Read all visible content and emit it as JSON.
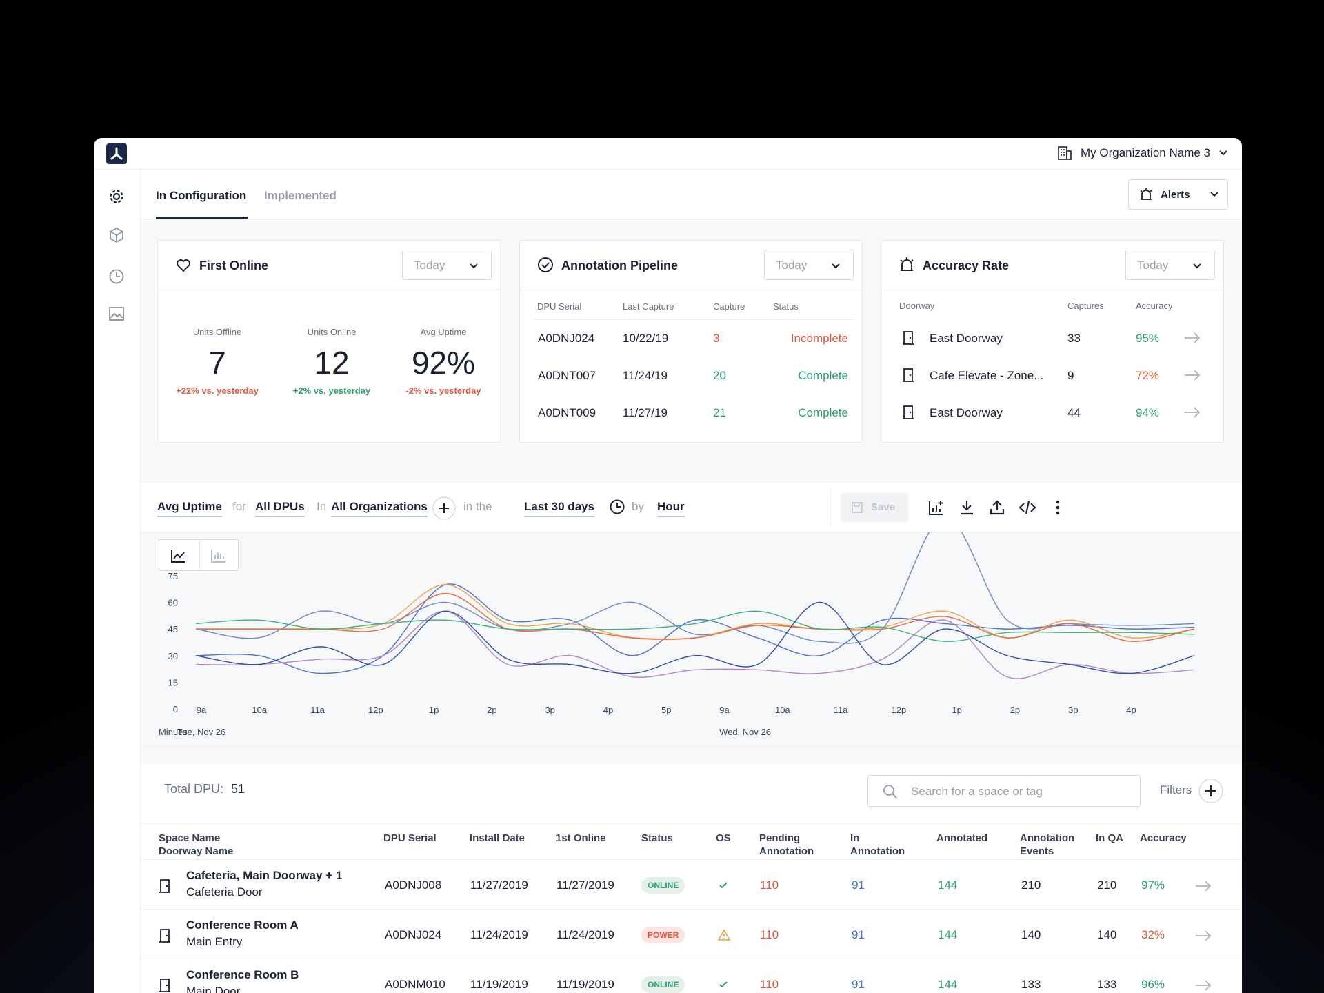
{
  "header": {
    "org_name": "My Organization Name 3"
  },
  "tabs": {
    "active": "In Configuration",
    "inactive": "Implemented",
    "alerts_label": "Alerts"
  },
  "first_online": {
    "title": "First Online",
    "range": "Today",
    "stats": [
      {
        "label": "Units Offline",
        "value": "7",
        "delta": "+22% vs. yesterday"
      },
      {
        "label": "Units Online",
        "value": "12",
        "delta": "+2% vs. yesterday"
      },
      {
        "label": "Avg Uptime",
        "value": "92%",
        "delta": "-2% vs. yesterday"
      }
    ]
  },
  "pipeline": {
    "title": "Annotation Pipeline",
    "range": "Today",
    "headers": [
      "DPU Serial",
      "Last Capture",
      "Capture",
      "Status"
    ],
    "rows": [
      [
        "A0DNJ024",
        "10/22/19",
        "3",
        "Incomplete"
      ],
      [
        "A0DNT007",
        "11/24/19",
        "20",
        "Complete"
      ],
      [
        "A0DNT009",
        "11/27/19",
        "21",
        "Complete"
      ]
    ]
  },
  "accuracy": {
    "title": "Accuracy Rate",
    "range": "Today",
    "headers": [
      "Doorway",
      "Captures",
      "Accuracy"
    ],
    "rows": [
      [
        "East Doorway",
        "33",
        "95%"
      ],
      [
        "Cafe Elevate - Zone...",
        "9",
        "72%"
      ],
      [
        "East Doorway",
        "44",
        "94%"
      ]
    ]
  },
  "query": {
    "metric": "Avg Uptime",
    "for": "for",
    "dpus": "All DPUs",
    "in": "In",
    "orgs": "All Organizations",
    "in_the": "in the",
    "range": "Last 30 days",
    "by": "by",
    "unit": "Hour",
    "save": "Save"
  },
  "chart_data": {
    "type": "line",
    "y_ticks": [
      "75",
      "60",
      "45",
      "30",
      "15",
      "0"
    ],
    "x_ticks": [
      "9a",
      "10a",
      "11a",
      "12p",
      "1p",
      "2p",
      "3p",
      "4p",
      "5p",
      "9a",
      "10a",
      "11a",
      "12p",
      "1p",
      "2p",
      "3p",
      "4p"
    ],
    "ylabel": "Minues",
    "date_labels": [
      "Tue, Nov 26",
      "Wed, Nov 26"
    ],
    "ylim": [
      0,
      80
    ],
    "series": [
      {
        "color": "#4a6fd1",
        "values": [
          30,
          30,
          20,
          30,
          70,
          50,
          50,
          30,
          50,
          40,
          30,
          50,
          48,
          45,
          47,
          45,
          46
        ]
      },
      {
        "color": "#6f86c9",
        "values": [
          45,
          40,
          55,
          48,
          60,
          45,
          48,
          60,
          42,
          47,
          38,
          45,
          108,
          50,
          48,
          47,
          48
        ]
      },
      {
        "color": "#f0a24a",
        "values": [
          45,
          45,
          45,
          48,
          70,
          48,
          48,
          40,
          40,
          48,
          45,
          46,
          55,
          40,
          50,
          40,
          45
        ]
      },
      {
        "color": "#e46d3d",
        "values": [
          45,
          45,
          45,
          45,
          65,
          45,
          45,
          40,
          40,
          47,
          45,
          45,
          52,
          40,
          48,
          38,
          45
        ]
      },
      {
        "color": "#3db07c",
        "values": [
          48,
          50,
          45,
          48,
          50,
          45,
          45,
          45,
          48,
          55,
          45,
          46,
          38,
          43,
          43,
          43,
          42
        ]
      },
      {
        "color": "#b583c7",
        "values": [
          25,
          25,
          28,
          30,
          55,
          25,
          30,
          18,
          22,
          22,
          20,
          28,
          50,
          18,
          25,
          20,
          22
        ]
      },
      {
        "color": "#2f4fb3",
        "values": [
          30,
          25,
          35,
          25,
          55,
          28,
          25,
          20,
          30,
          25,
          60,
          25,
          45,
          30,
          25,
          20,
          30
        ]
      }
    ]
  },
  "table": {
    "total_label": "Total DPU:",
    "total_value": "51",
    "search_placeholder": "Search for a space or tag",
    "filters": "Filters",
    "headers": [
      "Space Name",
      "Doorway Name",
      "DPU Serial",
      "Install Date",
      "1st Online",
      "Status",
      "OS",
      "Pending",
      "Annotation",
      "In",
      "Annotation",
      "Annotated",
      "Annotation",
      "Events",
      "In QA",
      "Accuracy"
    ],
    "rows": [
      {
        "space": "Cafeteria, Main Doorway + 1",
        "door": "Cafeteria Door",
        "serial": "A0DNJ008",
        "install": "11/27/2019",
        "online": "11/27/2019",
        "status": "ONLINE",
        "pending": "110",
        "in_ann": "91",
        "annotated": "144",
        "events": "210",
        "qa": "210",
        "accuracy": "97%"
      },
      {
        "space": "Conference Room A",
        "door": "Main Entry",
        "serial": "A0DNJ024",
        "install": "11/24/2019",
        "online": "11/24/2019",
        "status": "POWER",
        "pending": "110",
        "in_ann": "91",
        "annotated": "144",
        "events": "140",
        "qa": "140",
        "accuracy": "32%"
      },
      {
        "space": "Conference Room B",
        "door": "Main Door",
        "serial": "A0DNM010",
        "install": "11/19/2019",
        "online": "11/19/2019",
        "status": "ONLINE",
        "pending": "110",
        "in_ann": "91",
        "annotated": "144",
        "events": "133",
        "qa": "133",
        "accuracy": "96%"
      }
    ]
  }
}
